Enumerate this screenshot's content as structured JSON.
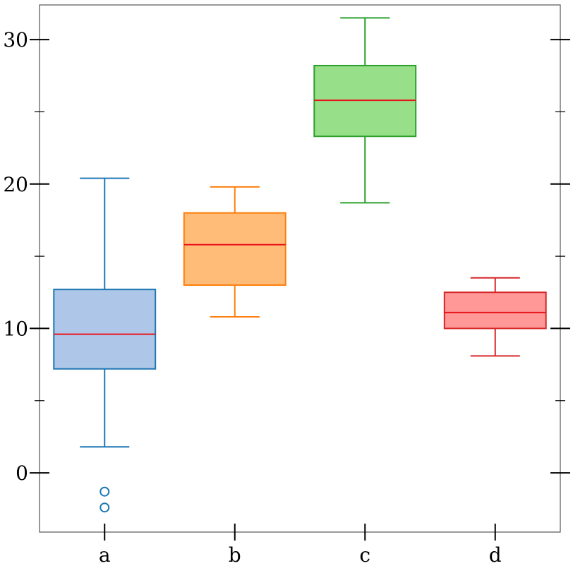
{
  "chart_data": {
    "type": "box",
    "title": "",
    "xlabel": "",
    "ylabel": "",
    "categories": [
      "a",
      "b",
      "c",
      "d"
    ],
    "ylim": [
      -4.1,
      32.4
    ],
    "yticks": [
      0,
      10,
      20,
      30
    ],
    "yticks_minor": [
      5,
      15,
      25
    ],
    "grid": false,
    "legend": "none",
    "median_color": "#e8141c",
    "boxes": [
      {
        "label": "a",
        "whisker_low": 1.8,
        "q1": 7.2,
        "median": 9.6,
        "q3": 12.7,
        "whisker_high": 20.4,
        "outliers": [
          -1.3,
          -2.4
        ],
        "edge_color": "#1f77b4",
        "fill_color": "#aec7e8"
      },
      {
        "label": "b",
        "whisker_low": 10.8,
        "q1": 13.0,
        "median": 15.8,
        "q3": 18.0,
        "whisker_high": 19.8,
        "outliers": [],
        "edge_color": "#ff7f0e",
        "fill_color": "#ffbb78"
      },
      {
        "label": "c",
        "whisker_low": 18.7,
        "q1": 23.3,
        "median": 25.8,
        "q3": 28.2,
        "whisker_high": 31.5,
        "outliers": [],
        "edge_color": "#2ca02c",
        "fill_color": "#98df8a"
      },
      {
        "label": "d",
        "whisker_low": 8.1,
        "q1": 10.0,
        "median": 11.1,
        "q3": 12.5,
        "whisker_high": 13.5,
        "outliers": [],
        "edge_color": "#d62728",
        "fill_color": "#ff9896"
      }
    ]
  }
}
